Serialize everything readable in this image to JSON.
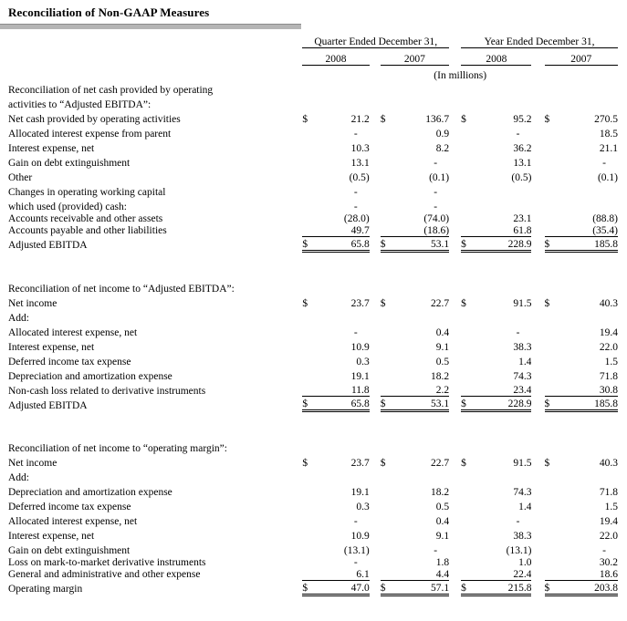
{
  "page_title": "Reconciliation of Non-GAAP Measures",
  "table": {
    "col_groups": [
      "Quarter Ended December 31,",
      "Year Ended December 31,"
    ],
    "years": [
      "2008",
      "2007",
      "2008",
      "2007"
    ],
    "units_note": "(In millions)",
    "rows": [
      {
        "type": "heading",
        "label": "Reconciliation of net cash provided by operating",
        "indent": 0
      },
      {
        "type": "heading",
        "label": "activities to “Adjusted EBITDA”:",
        "indent": 1
      },
      {
        "type": "data",
        "label": "Net cash provided by operating activities",
        "indent": 0,
        "dollar": true,
        "values": [
          "21.2",
          "136.7",
          "95.2",
          "270.5"
        ]
      },
      {
        "type": "data",
        "label": "Allocated interest expense from parent",
        "indent": 0,
        "values": [
          "-",
          "0.9",
          "-",
          "18.5"
        ]
      },
      {
        "type": "data",
        "label": "Interest expense, net",
        "indent": 0,
        "values": [
          "10.3",
          "8.2",
          "36.2",
          "21.1"
        ]
      },
      {
        "type": "data",
        "label": "Gain on debt extinguishment",
        "indent": 0,
        "values": [
          "13.1",
          "-",
          "13.1",
          "-"
        ]
      },
      {
        "type": "data",
        "label": "Other",
        "indent": 0,
        "values": [
          "(0.5)",
          "(0.1)",
          "(0.5)",
          "(0.1)"
        ]
      },
      {
        "type": "data",
        "label": "Changes in operating working capital",
        "indent": 0,
        "values": [
          "-",
          "-",
          "",
          ""
        ]
      },
      {
        "type": "data",
        "label": "which used (provided) cash:",
        "indent": 1,
        "values": [
          "-",
          "-",
          "",
          ""
        ]
      },
      {
        "type": "data",
        "label": "Accounts receivable and other assets",
        "indent": 1,
        "tight": true,
        "values": [
          "(28.0)",
          "(74.0)",
          "23.1",
          "(88.8)"
        ]
      },
      {
        "type": "data",
        "label": "Accounts payable and other liabilities",
        "indent": 1,
        "tight": true,
        "rule": "single",
        "values": [
          "49.7",
          "(18.6)",
          "61.8",
          "(35.4)"
        ]
      },
      {
        "type": "data",
        "label": "Adjusted EBITDA",
        "indent": 0,
        "dollar": true,
        "rule": "double",
        "values": [
          "65.8",
          "53.1",
          "228.9",
          "185.8"
        ]
      },
      {
        "type": "spacer"
      },
      {
        "type": "heading",
        "label": "Reconciliation of net income to “Adjusted EBITDA”:",
        "indent": 0
      },
      {
        "type": "data",
        "label": "Net income",
        "indent": 1,
        "dollar": true,
        "values": [
          "23.7",
          "22.7",
          "91.5",
          "40.3"
        ]
      },
      {
        "type": "data",
        "label": "Add:",
        "indent": 0,
        "values": [
          "",
          "",
          "",
          ""
        ]
      },
      {
        "type": "data",
        "label": "Allocated interest expense, net",
        "indent": 1,
        "values": [
          "-",
          "0.4",
          "-",
          "19.4"
        ]
      },
      {
        "type": "data",
        "label": "Interest expense, net",
        "indent": 1,
        "values": [
          "10.9",
          "9.1",
          "38.3",
          "22.0"
        ]
      },
      {
        "type": "data",
        "label": "Deferred income tax expense",
        "indent": 1,
        "values": [
          "0.3",
          "0.5",
          "1.4",
          "1.5"
        ]
      },
      {
        "type": "data",
        "label": "Depreciation and amortization expense",
        "indent": 1,
        "values": [
          "19.1",
          "18.2",
          "74.3",
          "71.8"
        ]
      },
      {
        "type": "data",
        "label": "Non-cash loss related to derivative instruments",
        "indent": 1,
        "rule": "single",
        "values": [
          "11.8",
          "2.2",
          "23.4",
          "30.8"
        ]
      },
      {
        "type": "data",
        "label": "Adjusted EBITDA",
        "indent": 0,
        "dollar": true,
        "rule": "double",
        "values": [
          "65.8",
          "53.1",
          "228.9",
          "185.8"
        ]
      },
      {
        "type": "spacer"
      },
      {
        "type": "heading",
        "label": "Reconciliation of net income to “operating margin”:",
        "indent": 0
      },
      {
        "type": "data",
        "label": "Net income",
        "indent": 1,
        "dollar": true,
        "values": [
          "23.7",
          "22.7",
          "91.5",
          "40.3"
        ]
      },
      {
        "type": "data",
        "label": "Add:",
        "indent": 0,
        "values": [
          "",
          "",
          "",
          ""
        ]
      },
      {
        "type": "data",
        "label": "Depreciation and amortization expense",
        "indent": 1,
        "values": [
          "19.1",
          "18.2",
          "74.3",
          "71.8"
        ]
      },
      {
        "type": "data",
        "label": "Deferred income tax expense",
        "indent": 1,
        "values": [
          "0.3",
          "0.5",
          "1.4",
          "1.5"
        ]
      },
      {
        "type": "data",
        "label": "Allocated interest expense, net",
        "indent": 1,
        "values": [
          "-",
          "0.4",
          "-",
          "19.4"
        ]
      },
      {
        "type": "data",
        "label": "Interest expense, net",
        "indent": 1,
        "values": [
          "10.9",
          "9.1",
          "38.3",
          "22.0"
        ]
      },
      {
        "type": "data",
        "label": "Gain on debt extinguishment",
        "indent": 1,
        "values": [
          "(13.1)",
          "-",
          "(13.1)",
          "-"
        ]
      },
      {
        "type": "data",
        "label": "Loss on mark-to-market derivative instruments",
        "indent": 1,
        "tight": true,
        "values": [
          "-",
          "1.8",
          "1.0",
          "30.2"
        ]
      },
      {
        "type": "data",
        "label": "General and administrative and other expense",
        "indent": 1,
        "tight": true,
        "rule": "single",
        "values": [
          "6.1",
          "4.4",
          "22.4",
          "18.6"
        ]
      },
      {
        "type": "data",
        "label": "Operating margin",
        "indent": 0,
        "dollar": true,
        "rule": "double",
        "values": [
          "47.0",
          "57.1",
          "215.8",
          "203.8"
        ]
      }
    ]
  }
}
